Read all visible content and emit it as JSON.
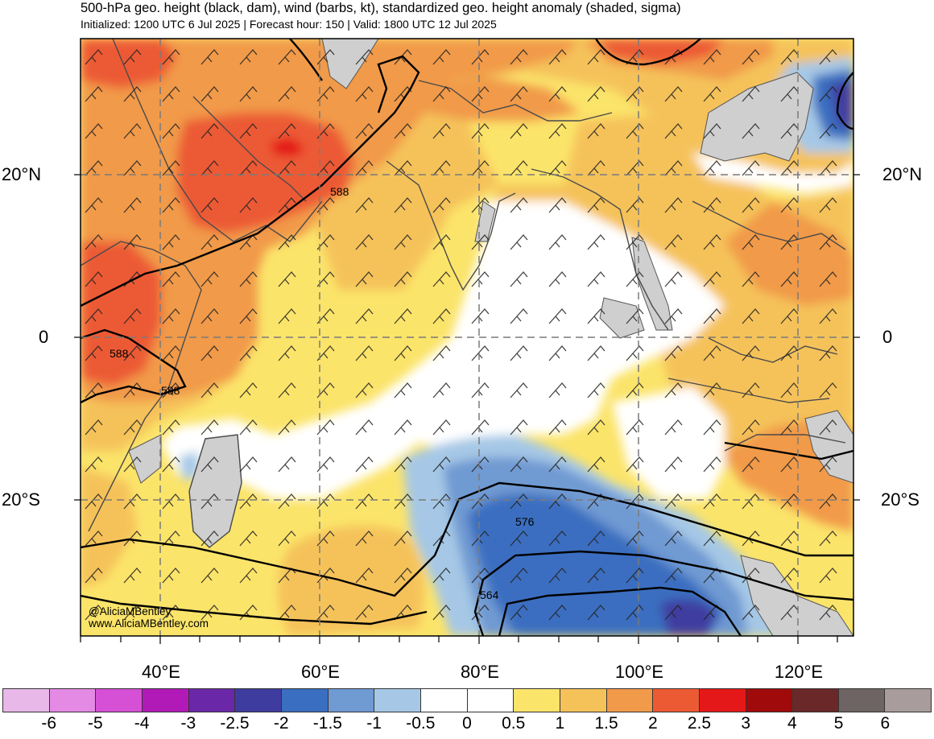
{
  "header": {
    "title": "500-hPa geo. height (black, dam), wind (barbs, kt), standardized geo. height anomaly (shaded, sigma)",
    "subtitle": "Initialized: 1200 UTC 6 Jul 2025 | Forecast hour: 150 | Valid: 1800 UTC 12 Jul 2025"
  },
  "map": {
    "lat_labels": [
      "20°N",
      "0",
      "20°S"
    ],
    "lon_labels": [
      "40°E",
      "60°E",
      "80°E",
      "100°E",
      "120°E"
    ],
    "contour_labels": [
      "588",
      "588",
      "588",
      "576",
      "564"
    ],
    "credit": [
      "@AliciaMBentley",
      "www.AliciaMBentley.com"
    ]
  },
  "colorbar": {
    "labels": [
      "-6",
      "-5",
      "-4",
      "-3",
      "-2.5",
      "-2",
      "-1.5",
      "-1",
      "-0.5",
      "0",
      "0.5",
      "1",
      "1.5",
      "2",
      "2.5",
      "3",
      "4",
      "5",
      "6"
    ],
    "colors": [
      "#e8b8e8",
      "#e48ae4",
      "#d650d6",
      "#b21ab8",
      "#6a28a8",
      "#3f3ca0",
      "#3a6ec0",
      "#6f9ad2",
      "#a6c8e6",
      "#ffffff",
      "#ffffff",
      "#fbe46a",
      "#f5c25a",
      "#f19a4a",
      "#ec5a34",
      "#e41818",
      "#a00a0a",
      "#6a2828",
      "#6e6464",
      "#a89c9c"
    ]
  },
  "chart_data": {
    "type": "heatmap",
    "title": "500-hPa geo. height (black, dam), wind (barbs, kt), standardized geo. height anomaly (shaded, sigma)",
    "subtitle": "Initialized: 1200 UTC 6 Jul 2025 | Forecast hour: 150 | Valid: 1800 UTC 12 Jul 2025",
    "x_ticks": [
      "40°E",
      "60°E",
      "80°E",
      "100°E",
      "120°E"
    ],
    "y_ticks": [
      "20°N",
      "0",
      "20°S"
    ],
    "colorbar_ticks": [
      -6,
      -5,
      -4,
      -3,
      -2.5,
      -2,
      -1.5,
      -1,
      -0.5,
      0,
      0.5,
      1,
      1.5,
      2,
      2.5,
      3,
      4,
      5,
      6
    ],
    "contour_levels_dam": [
      588,
      576,
      564
    ],
    "grid": true
  }
}
